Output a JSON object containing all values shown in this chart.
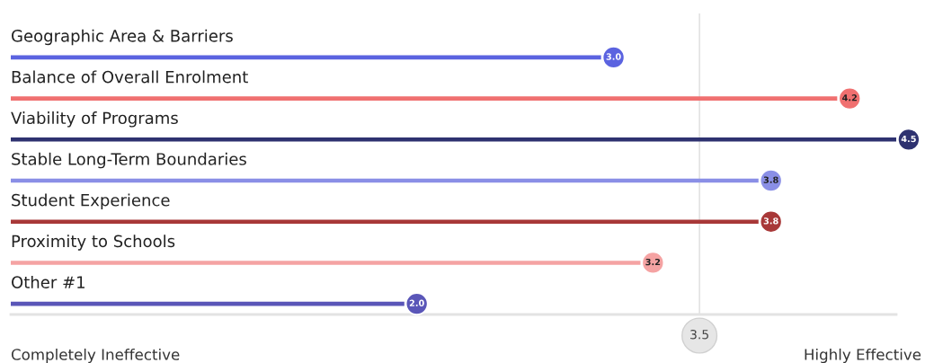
{
  "chart_data": {
    "type": "bar",
    "orientation": "horizontal",
    "categories": [
      "Geographic Area & Barriers",
      "Balance of Overall Enrolment",
      "Viability of Programs",
      "Stable Long-Term Boundaries",
      "Student Experience",
      "Proximity to Schools",
      "Other #1"
    ],
    "values": [
      3.0,
      4.2,
      4.5,
      3.8,
      3.8,
      3.2,
      2.0
    ],
    "colors": [
      "#5b63e0",
      "#f07070",
      "#2e3270",
      "#8a8fe6",
      "#a83838",
      "#f5a3a3",
      "#5a56b8"
    ],
    "value_labels": [
      "3.0",
      "4.2",
      "4.5",
      "3.8",
      "3.8",
      "3.2",
      "2.0"
    ],
    "tick_labels": false,
    "ref_lines": [
      {
        "axis": "x",
        "value": 3.5,
        "label": "3.5",
        "color": "#dddddd"
      }
    ],
    "annotations": [
      "Completely Ineffective",
      "Highly Effective"
    ]
  }
}
